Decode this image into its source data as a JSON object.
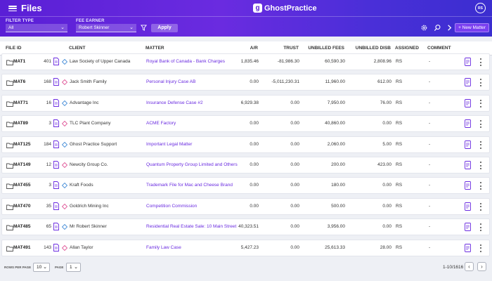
{
  "header": {
    "title": "Files",
    "logo_mark": "g",
    "logo_text": "GhostPractice",
    "avatar": "RS",
    "filter_type_label": "FILTER TYPE",
    "filter_type_value": "All",
    "fee_earner_label": "FEE EARNER",
    "fee_earner_value": "Robert Skinner",
    "apply_label": "Apply",
    "new_matter_label": "+ New Matter"
  },
  "table": {
    "headers": {
      "file_id": "FILE ID",
      "client": "CLIENT",
      "matter": "MATTER",
      "ar": "A/R",
      "trust": "TRUST",
      "unbilled_fees": "UNBILLED FEES",
      "unbilled_disb": "UNBILLED DISB",
      "assigned": "ASSIGNED",
      "comment": "COMMENT"
    },
    "rows": [
      {
        "file_id": "MAT1",
        "count": "401",
        "client": "Law Society of Upper Canada",
        "matter": "Royal Bank of Canada - Bank Charges",
        "ar": "1,835.46",
        "trust": "-81,986.30",
        "unbilled_fees": "60,590.30",
        "unbilled_disb": "2,808.96",
        "assigned": "RS",
        "comment": "-"
      },
      {
        "file_id": "MAT6",
        "count": "168",
        "client": "Jack Smith Family",
        "matter": "Personal Injury Case AB",
        "ar": "0.00",
        "trust": "-5,011,230.31",
        "unbilled_fees": "11,960.00",
        "unbilled_disb": "612.00",
        "assigned": "RS",
        "comment": "-"
      },
      {
        "file_id": "MAT71",
        "count": "16",
        "client": "Advantage Inc",
        "matter": "Insurance Defense Case #2",
        "ar": "6,929.38",
        "trust": "0.00",
        "unbilled_fees": "7,950.00",
        "unbilled_disb": "76.00",
        "assigned": "RS",
        "comment": "-"
      },
      {
        "file_id": "MAT89",
        "count": "3",
        "client": "TLC Plant Company",
        "matter": "ACME Factory",
        "ar": "0.00",
        "trust": "0.00",
        "unbilled_fees": "40,860.00",
        "unbilled_disb": "0.00",
        "assigned": "RS",
        "comment": "-"
      },
      {
        "file_id": "MAT125",
        "count": "184",
        "client": "Ghost Practice Support",
        "matter": "Important Legal Matter",
        "ar": "0.00",
        "trust": "0.00",
        "unbilled_fees": "2,060.00",
        "unbilled_disb": "5.00",
        "assigned": "RS",
        "comment": "-"
      },
      {
        "file_id": "MAT149",
        "count": "12",
        "client": "Newcity Group Co.",
        "matter": "Quantum Property Group Limited and Others",
        "ar": "0.00",
        "trust": "0.00",
        "unbilled_fees": "200.00",
        "unbilled_disb": "423.00",
        "assigned": "RS",
        "comment": "-"
      },
      {
        "file_id": "MAT455",
        "count": "3",
        "client": "Kraft Foods",
        "matter": "Trademark File for Mac and Cheese Brand",
        "ar": "0.00",
        "trust": "0.00",
        "unbilled_fees": "180.00",
        "unbilled_disb": "0.00",
        "assigned": "RS",
        "comment": "-"
      },
      {
        "file_id": "MAT470",
        "count": "35",
        "client": "Goldrich Mining Inc",
        "matter": "Competition Commission",
        "ar": "0.00",
        "trust": "0.00",
        "unbilled_fees": "500.00",
        "unbilled_disb": "0.00",
        "assigned": "RS",
        "comment": "-"
      },
      {
        "file_id": "MAT485",
        "count": "65",
        "client": "Mr Robert Skinner",
        "matter": "Residential Real Estate Sale: 10 Main Street",
        "ar": "40,323.51",
        "trust": "0.00",
        "unbilled_fees": "3,956.00",
        "unbilled_disb": "0.00",
        "assigned": "RS",
        "comment": "-"
      },
      {
        "file_id": "MAT491",
        "count": "143",
        "client": "Allan Taylor",
        "matter": "Family Law Case",
        "ar": "5,427.23",
        "trust": "0.00",
        "unbilled_fees": "25,613.33",
        "unbilled_disb": "28.00",
        "assigned": "RS",
        "comment": "-"
      }
    ]
  },
  "footer": {
    "rows_per_page_label": "ROWS PER PAGE",
    "rows_per_page_value": "10",
    "page_label": "PAGE",
    "page_value": "1",
    "range": "1-10/1616"
  },
  "colors": {
    "header_gradient_start": "#5a1fd6",
    "header_gradient_end": "#3b2ed0",
    "matter_link": "#6a2be0"
  },
  "icons": [
    "menu-icon",
    "folder-icon",
    "document-icon",
    "diamond-icon",
    "filter-icon",
    "settings-icon",
    "search-icon",
    "chevron-right-icon",
    "invoice-icon",
    "kebab-icon"
  ]
}
